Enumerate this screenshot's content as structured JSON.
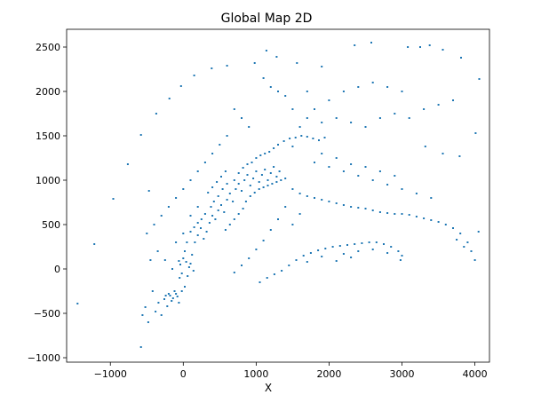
{
  "chart_data": {
    "type": "scatter",
    "title": "Global Map 2D",
    "xlabel": "X",
    "ylabel": "",
    "xlim": [
      -1600,
      4200
    ],
    "ylim": [
      -1050,
      2700
    ],
    "xticks": [
      -1000,
      0,
      1000,
      2000,
      3000,
      4000
    ],
    "yticks": [
      -1000,
      -500,
      0,
      500,
      1000,
      1500,
      2000,
      2500
    ],
    "xtick_labels": [
      "−1000",
      "0",
      "1000",
      "2000",
      "3000",
      "4000"
    ],
    "ytick_labels": [
      "−1000",
      "−500",
      "0",
      "500",
      "1000",
      "1500",
      "2000",
      "2500"
    ],
    "grid": false,
    "marker_color": "#1f77b4",
    "series": [
      {
        "points": [
          [
            -1450,
            -390
          ],
          [
            -1220,
            280
          ],
          [
            -960,
            790
          ],
          [
            -760,
            1180
          ],
          [
            -580,
            1510
          ],
          [
            -580,
            -880
          ],
          [
            -470,
            880
          ],
          [
            -370,
            1750
          ],
          [
            -190,
            1920
          ],
          [
            -30,
            2060
          ],
          [
            150,
            2180
          ],
          [
            390,
            2260
          ],
          [
            600,
            2290
          ],
          [
            980,
            2320
          ],
          [
            1140,
            2460
          ],
          [
            1280,
            2390
          ],
          [
            1560,
            2320
          ],
          [
            1900,
            2280
          ],
          [
            2350,
            2520
          ],
          [
            2580,
            2550
          ],
          [
            3080,
            2500
          ],
          [
            3250,
            2500
          ],
          [
            3380,
            2520
          ],
          [
            3560,
            2470
          ],
          [
            3810,
            2380
          ],
          [
            4060,
            2140
          ],
          [
            4010,
            1530
          ],
          [
            3790,
            1270
          ],
          [
            3560,
            1300
          ],
          [
            3320,
            1380
          ],
          [
            -560,
            -520
          ],
          [
            -520,
            -430
          ],
          [
            -480,
            -600
          ],
          [
            -420,
            -250
          ],
          [
            -380,
            -480
          ],
          [
            -340,
            -380
          ],
          [
            -300,
            -520
          ],
          [
            -260,
            -340
          ],
          [
            -220,
            -420
          ],
          [
            -180,
            -300
          ],
          [
            -140,
            -330
          ],
          [
            -100,
            -280
          ],
          [
            -60,
            -380
          ],
          [
            -20,
            -250
          ],
          [
            20,
            -200
          ],
          [
            -200,
            -280
          ],
          [
            -160,
            -360
          ],
          [
            -120,
            -250
          ],
          [
            -80,
            -310
          ],
          [
            -240,
            -300
          ],
          [
            -40,
            50
          ],
          [
            0,
            120
          ],
          [
            40,
            80
          ],
          [
            80,
            20
          ],
          [
            120,
            160
          ],
          [
            -20,
            -50
          ],
          [
            60,
            -80
          ],
          [
            100,
            60
          ],
          [
            140,
            -20
          ],
          [
            20,
            200
          ],
          [
            -60,
            90
          ],
          [
            160,
            300
          ],
          [
            200,
            380
          ],
          [
            240,
            460
          ],
          [
            280,
            340
          ],
          [
            320,
            420
          ],
          [
            360,
            520
          ],
          [
            400,
            600
          ],
          [
            440,
            560
          ],
          [
            480,
            660
          ],
          [
            520,
            720
          ],
          [
            560,
            640
          ],
          [
            600,
            780
          ],
          [
            640,
            850
          ],
          [
            680,
            760
          ],
          [
            720,
            900
          ],
          [
            760,
            960
          ],
          [
            800,
            880
          ],
          [
            840,
            1000
          ],
          [
            880,
            1060
          ],
          [
            920,
            940
          ],
          [
            960,
            1020
          ],
          [
            1000,
            1100
          ],
          [
            1040,
            980
          ],
          [
            1080,
            1060
          ],
          [
            1120,
            1120
          ],
          [
            1160,
            1000
          ],
          [
            1200,
            1080
          ],
          [
            1240,
            1150
          ],
          [
            1280,
            1040
          ],
          [
            1320,
            1100
          ],
          [
            700,
            1000
          ],
          [
            760,
            1080
          ],
          [
            820,
            1140
          ],
          [
            880,
            1180
          ],
          [
            940,
            1200
          ],
          [
            1000,
            1250
          ],
          [
            1060,
            1280
          ],
          [
            1120,
            1300
          ],
          [
            1180,
            1320
          ],
          [
            1240,
            1360
          ],
          [
            1300,
            1400
          ],
          [
            1380,
            1440
          ],
          [
            1460,
            1470
          ],
          [
            1540,
            1480
          ],
          [
            1620,
            1500
          ],
          [
            1700,
            1490
          ],
          [
            1780,
            1470
          ],
          [
            1860,
            1450
          ],
          [
            1940,
            1480
          ],
          [
            1500,
            1380
          ],
          [
            540,
            900
          ],
          [
            600,
            960
          ],
          [
            480,
            820
          ],
          [
            420,
            760
          ],
          [
            380,
            700
          ],
          [
            300,
            620
          ],
          [
            250,
            560
          ],
          [
            200,
            520
          ],
          [
            150,
            470
          ],
          [
            100,
            420
          ],
          [
            460,
            980
          ],
          [
            520,
            1040
          ],
          [
            580,
            1100
          ],
          [
            400,
            920
          ],
          [
            340,
            860
          ],
          [
            860,
            760
          ],
          [
            920,
            820
          ],
          [
            980,
            860
          ],
          [
            1040,
            900
          ],
          [
            1100,
            920
          ],
          [
            1160,
            940
          ],
          [
            1220,
            960
          ],
          [
            1280,
            980
          ],
          [
            1340,
            1000
          ],
          [
            1400,
            1020
          ],
          [
            700,
            560
          ],
          [
            760,
            620
          ],
          [
            820,
            680
          ],
          [
            640,
            500
          ],
          [
            580,
            440
          ],
          [
            1500,
            900
          ],
          [
            1600,
            850
          ],
          [
            1700,
            820
          ],
          [
            1800,
            800
          ],
          [
            1900,
            780
          ],
          [
            2000,
            760
          ],
          [
            2100,
            740
          ],
          [
            2200,
            720
          ],
          [
            2300,
            700
          ],
          [
            2400,
            690
          ],
          [
            2500,
            680
          ],
          [
            2600,
            660
          ],
          [
            2700,
            640
          ],
          [
            2800,
            630
          ],
          [
            2900,
            620
          ],
          [
            3000,
            620
          ],
          [
            3100,
            610
          ],
          [
            3200,
            590
          ],
          [
            3300,
            570
          ],
          [
            3400,
            550
          ],
          [
            3500,
            530
          ],
          [
            3600,
            500
          ],
          [
            3700,
            460
          ],
          [
            3800,
            400
          ],
          [
            3900,
            300
          ],
          [
            3950,
            200
          ],
          [
            4000,
            100
          ],
          [
            4050,
            420
          ],
          [
            3850,
            250
          ],
          [
            3750,
            330
          ],
          [
            1400,
            700
          ],
          [
            1300,
            560
          ],
          [
            1200,
            440
          ],
          [
            1100,
            320
          ],
          [
            1000,
            220
          ],
          [
            900,
            120
          ],
          [
            800,
            40
          ],
          [
            700,
            -40
          ],
          [
            1600,
            620
          ],
          [
            1500,
            500
          ],
          [
            1450,
            40
          ],
          [
            1550,
            100
          ],
          [
            1650,
            150
          ],
          [
            1750,
            180
          ],
          [
            1850,
            210
          ],
          [
            1950,
            230
          ],
          [
            2050,
            250
          ],
          [
            2150,
            260
          ],
          [
            2250,
            270
          ],
          [
            2350,
            280
          ],
          [
            2450,
            290
          ],
          [
            2550,
            300
          ],
          [
            2650,
            300
          ],
          [
            2750,
            280
          ],
          [
            2850,
            250
          ],
          [
            2950,
            200
          ],
          [
            3000,
            150
          ],
          [
            2980,
            100
          ],
          [
            1350,
            -20
          ],
          [
            1250,
            -60
          ],
          [
            1150,
            -100
          ],
          [
            1050,
            -150
          ],
          [
            2200,
            170
          ],
          [
            2400,
            200
          ],
          [
            2600,
            220
          ],
          [
            2800,
            180
          ],
          [
            1900,
            140
          ],
          [
            1700,
            80
          ],
          [
            2100,
            90
          ],
          [
            2300,
            130
          ],
          [
            1800,
            1200
          ],
          [
            2000,
            1150
          ],
          [
            2200,
            1100
          ],
          [
            2400,
            1050
          ],
          [
            2600,
            1000
          ],
          [
            2800,
            950
          ],
          [
            3000,
            900
          ],
          [
            3200,
            850
          ],
          [
            3400,
            800
          ],
          [
            1900,
            1300
          ],
          [
            2100,
            1250
          ],
          [
            2300,
            1180
          ],
          [
            2500,
            1150
          ],
          [
            2700,
            1100
          ],
          [
            2900,
            1050
          ],
          [
            1600,
            1600
          ],
          [
            1700,
            1700
          ],
          [
            1800,
            1800
          ],
          [
            2000,
            1900
          ],
          [
            2200,
            2000
          ],
          [
            2400,
            2050
          ],
          [
            2600,
            2100
          ],
          [
            2800,
            2050
          ],
          [
            3000,
            2000
          ],
          [
            1500,
            1800
          ],
          [
            1400,
            1950
          ],
          [
            1300,
            2000
          ],
          [
            1200,
            2050
          ],
          [
            1100,
            2150
          ],
          [
            2700,
            1700
          ],
          [
            2900,
            1750
          ],
          [
            3100,
            1700
          ],
          [
            3300,
            1800
          ],
          [
            3500,
            1850
          ],
          [
            3700,
            1900
          ],
          [
            2300,
            1650
          ],
          [
            2500,
            1600
          ],
          [
            2100,
            1700
          ],
          [
            1900,
            1650
          ],
          [
            1700,
            2000
          ],
          [
            900,
            1600
          ],
          [
            800,
            1700
          ],
          [
            700,
            1800
          ],
          [
            600,
            1500
          ],
          [
            500,
            1400
          ],
          [
            400,
            1300
          ],
          [
            300,
            1200
          ],
          [
            200,
            1100
          ],
          [
            100,
            1000
          ],
          [
            0,
            900
          ],
          [
            -100,
            800
          ],
          [
            -200,
            700
          ],
          [
            -300,
            600
          ],
          [
            -400,
            500
          ],
          [
            -500,
            400
          ],
          [
            -350,
            200
          ],
          [
            -250,
            100
          ],
          [
            -150,
            0
          ],
          [
            -50,
            -100
          ],
          [
            -450,
            100
          ],
          [
            50,
            300
          ],
          [
            0,
            400
          ],
          [
            -100,
            300
          ],
          [
            100,
            600
          ],
          [
            200,
            700
          ]
        ]
      }
    ]
  }
}
